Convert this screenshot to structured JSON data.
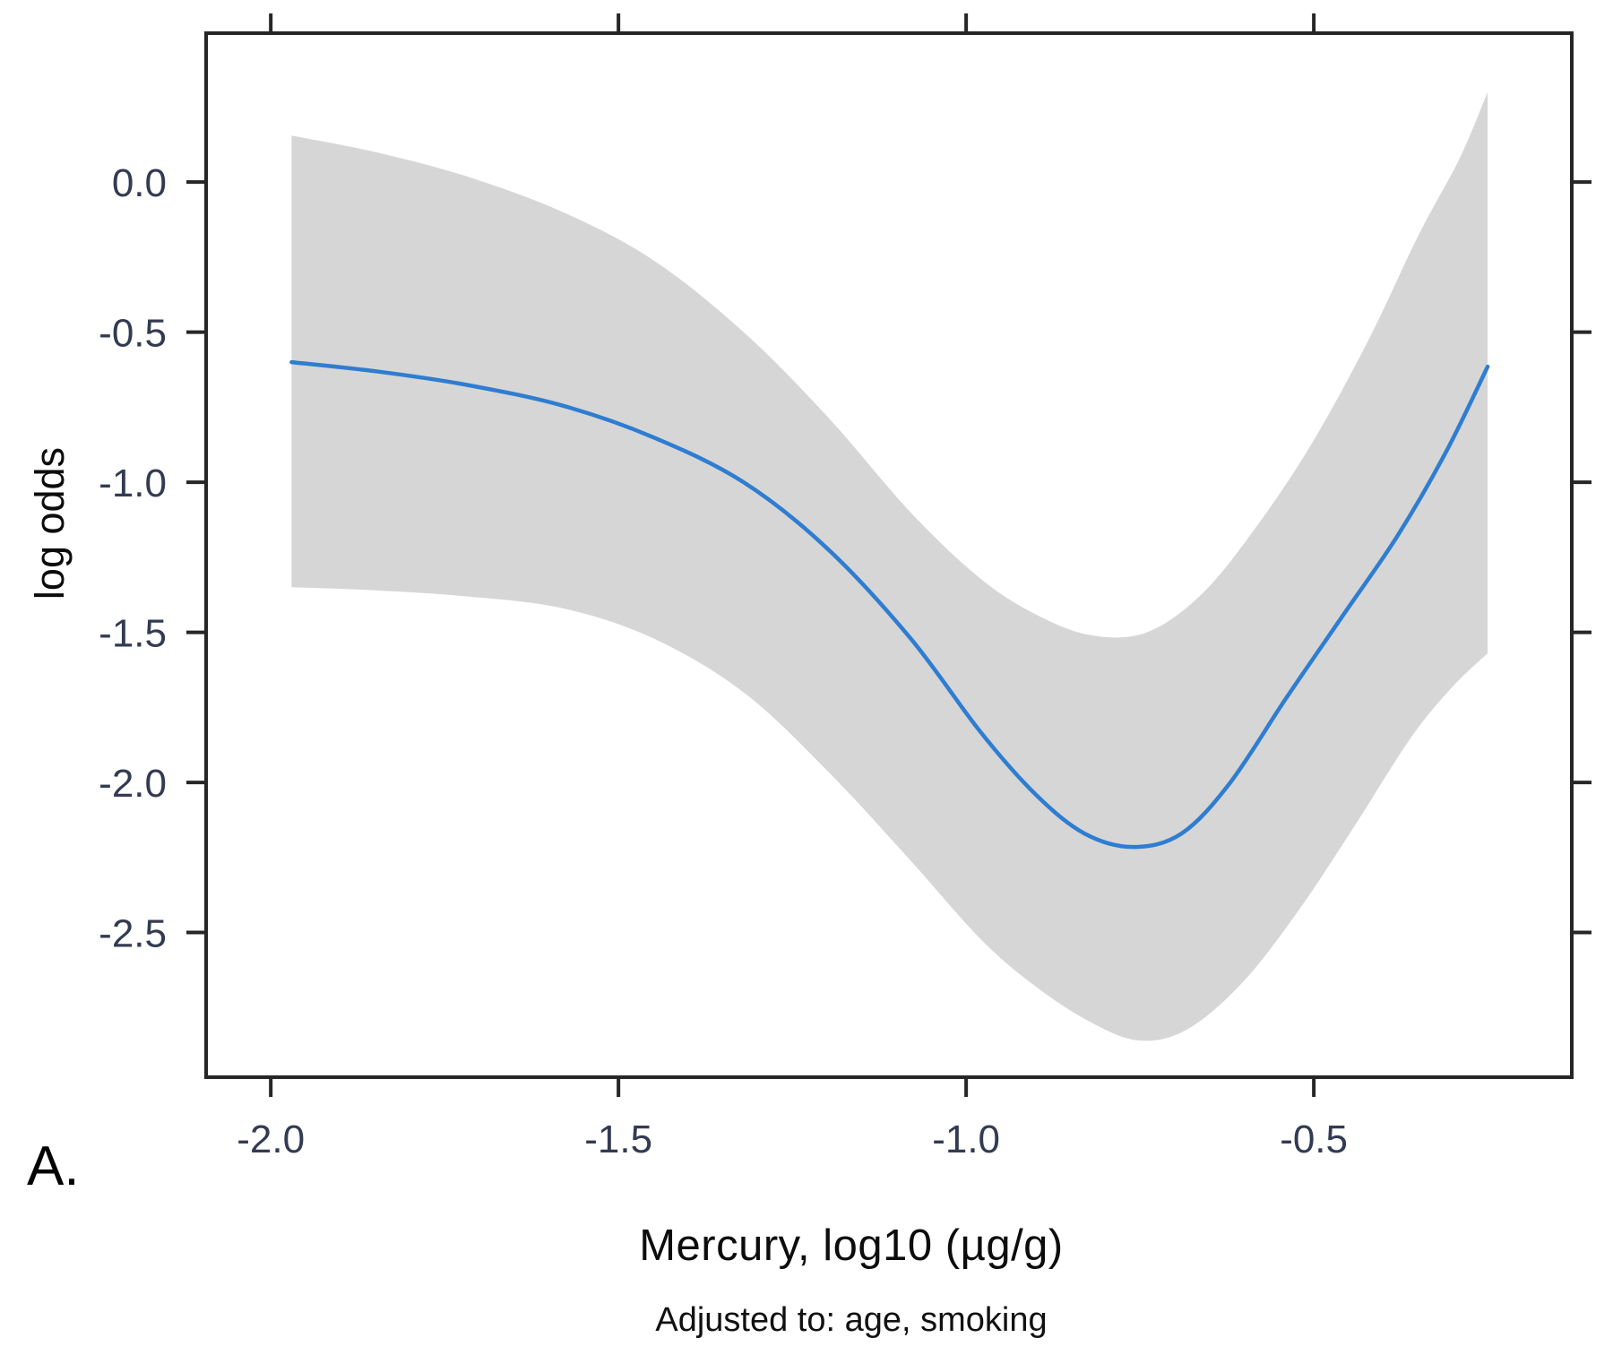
{
  "figure": {
    "panel_label": "A.",
    "xlabel": "Mercury, log10 (µg/g)",
    "xlabel_note": "Adjusted to: age, smoking",
    "ylabel": "log odds"
  },
  "chart_data": {
    "type": "line",
    "title": "",
    "xlabel": "Mercury, log10 (µg/g)",
    "ylabel": "log odds",
    "annotation": "Adjusted to: age, smoking",
    "panel_label": "A.",
    "grid": false,
    "legend": "none",
    "xlim": [
      -2.093,
      -0.129
    ],
    "ylim": [
      -2.982,
      0.496
    ],
    "x_ticks": [
      -2.0,
      -1.5,
      -1.0,
      -0.5
    ],
    "x_tick_labels": [
      "-2.0",
      "-1.5",
      "-1.0",
      "-0.5"
    ],
    "y_ticks": [
      0.0,
      -0.5,
      -1.0,
      -1.5,
      -2.0,
      -2.5
    ],
    "y_tick_labels": [
      "0.0",
      "-0.5",
      "-1.0",
      "-1.5",
      "-2.0",
      "-2.5"
    ],
    "tick_sides": [
      "bottom",
      "left",
      "top",
      "right"
    ],
    "colors": {
      "line": "#2e7dd1",
      "band": "#d6d6d6",
      "axis": "#262626",
      "tick_label": "#333b52",
      "text": "#0c0c0c",
      "background": "#ffffff"
    },
    "series": [
      {
        "name": "smooth_estimate",
        "kind": "line",
        "points": [
          [
            -1.97,
            -0.6
          ],
          [
            -1.85,
            -0.63
          ],
          [
            -1.72,
            -0.675
          ],
          [
            -1.58,
            -0.745
          ],
          [
            -1.45,
            -0.85
          ],
          [
            -1.32,
            -1.0
          ],
          [
            -1.2,
            -1.22
          ],
          [
            -1.08,
            -1.52
          ],
          [
            -0.98,
            -1.83
          ],
          [
            -0.9,
            -2.04
          ],
          [
            -0.83,
            -2.17
          ],
          [
            -0.76,
            -2.215
          ],
          [
            -0.69,
            -2.17
          ],
          [
            -0.62,
            -2.0
          ],
          [
            -0.54,
            -1.72
          ],
          [
            -0.46,
            -1.45
          ],
          [
            -0.38,
            -1.18
          ],
          [
            -0.31,
            -0.9
          ],
          [
            -0.25,
            -0.615
          ]
        ]
      },
      {
        "name": "confidence_band_upper",
        "kind": "area-boundary",
        "points": [
          [
            -1.97,
            0.155
          ],
          [
            -1.85,
            0.1
          ],
          [
            -1.72,
            0.02
          ],
          [
            -1.58,
            -0.1
          ],
          [
            -1.45,
            -0.26
          ],
          [
            -1.32,
            -0.5
          ],
          [
            -1.2,
            -0.78
          ],
          [
            -1.08,
            -1.1
          ],
          [
            -0.98,
            -1.32
          ],
          [
            -0.9,
            -1.44
          ],
          [
            -0.82,
            -1.51
          ],
          [
            -0.74,
            -1.5
          ],
          [
            -0.66,
            -1.37
          ],
          [
            -0.58,
            -1.14
          ],
          [
            -0.5,
            -0.86
          ],
          [
            -0.42,
            -0.52
          ],
          [
            -0.35,
            -0.18
          ],
          [
            -0.29,
            0.08
          ],
          [
            -0.25,
            0.3
          ]
        ]
      },
      {
        "name": "confidence_band_lower",
        "kind": "area-boundary",
        "points": [
          [
            -1.97,
            -1.35
          ],
          [
            -1.85,
            -1.36
          ],
          [
            -1.72,
            -1.38
          ],
          [
            -1.58,
            -1.42
          ],
          [
            -1.45,
            -1.52
          ],
          [
            -1.32,
            -1.7
          ],
          [
            -1.2,
            -1.96
          ],
          [
            -1.08,
            -2.26
          ],
          [
            -0.98,
            -2.52
          ],
          [
            -0.9,
            -2.68
          ],
          [
            -0.82,
            -2.8
          ],
          [
            -0.75,
            -2.86
          ],
          [
            -0.68,
            -2.82
          ],
          [
            -0.6,
            -2.66
          ],
          [
            -0.52,
            -2.42
          ],
          [
            -0.44,
            -2.14
          ],
          [
            -0.36,
            -1.85
          ],
          [
            -0.3,
            -1.68
          ],
          [
            -0.25,
            -1.57
          ]
        ]
      }
    ]
  }
}
